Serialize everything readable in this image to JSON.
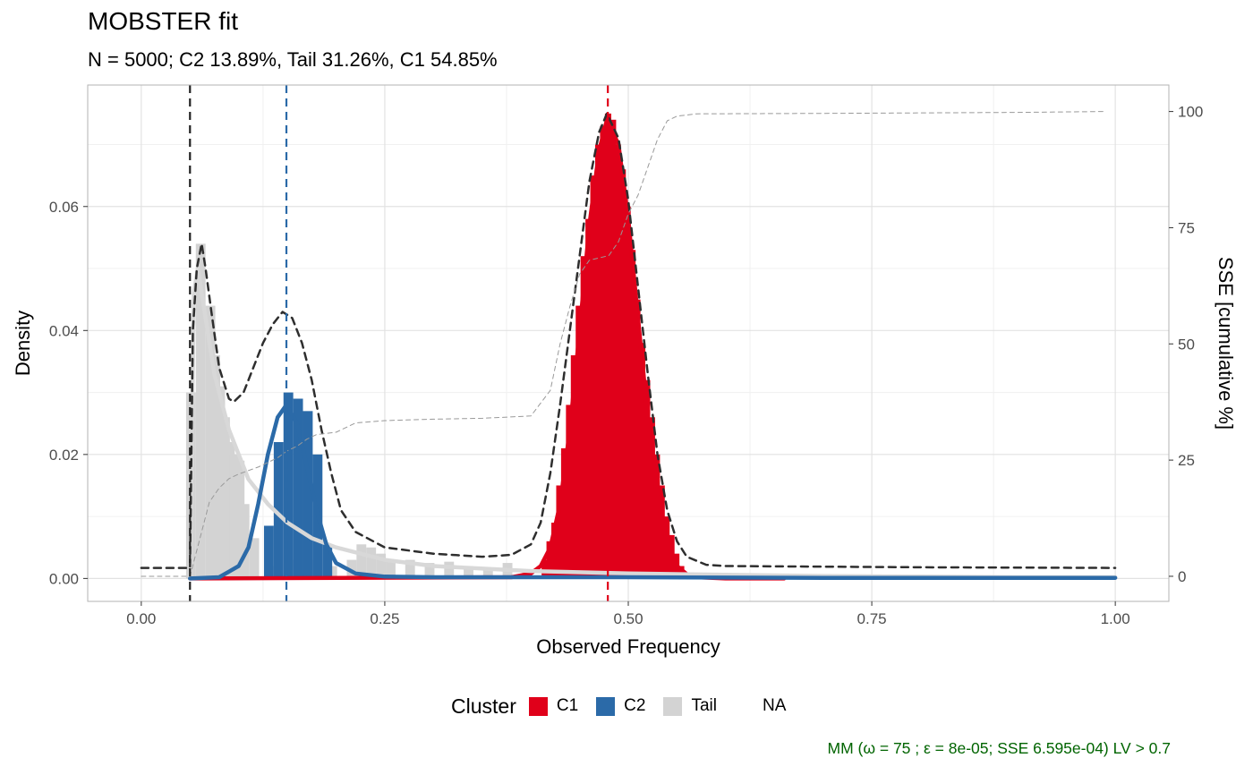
{
  "title": "MOBSTER fit",
  "subtitle": "N = 5000; C2 13.89%, Tail 31.26%, C1 54.85%",
  "caption": "MM (ω = 75 ; ε = 8e-05; SSE 6.595e-04) LV > 0.7",
  "legend": {
    "title": "Cluster",
    "items": [
      {
        "label": "C1",
        "color": "#e0001a"
      },
      {
        "label": "C2",
        "color": "#2b6aa8"
      },
      {
        "label": "Tail",
        "color": "#d3d3d3"
      },
      {
        "label": "NA",
        "color": null
      }
    ]
  },
  "chart_data": {
    "type": "bar",
    "xlabel": "Observed Frequency",
    "ylabel": "Density",
    "y2label": "SSE [cumulative %]",
    "xlim": [
      -0.055,
      1.055
    ],
    "ylim": [
      -0.0037,
      0.0796
    ],
    "y2lim": [
      -5.4,
      105.7
    ],
    "xticks": [
      {
        "v": 0,
        "label": "0.00"
      },
      {
        "v": 0.25,
        "label": "0.25"
      },
      {
        "v": 0.5,
        "label": "0.50"
      },
      {
        "v": 0.75,
        "label": "0.75"
      },
      {
        "v": 1.0,
        "label": "1.00"
      }
    ],
    "yticks": [
      {
        "v": 0,
        "label": "0.00"
      },
      {
        "v": 0.02,
        "label": "0.02"
      },
      {
        "v": 0.04,
        "label": "0.04"
      },
      {
        "v": 0.06,
        "label": "0.06"
      }
    ],
    "y2ticks": [
      {
        "v": 0,
        "label": "0"
      },
      {
        "v": 25,
        "label": "25"
      },
      {
        "v": 50,
        "label": "50"
      },
      {
        "v": 75,
        "label": "75"
      },
      {
        "v": 100,
        "label": "100"
      }
    ],
    "grid": true,
    "legend_position": "bottom",
    "colors": {
      "C1": "#e0001a",
      "C2": "#2b6aa8",
      "Tail": "#d3d3d3"
    },
    "vlines": [
      {
        "x": 0.05,
        "color": "#222222"
      },
      {
        "x": 0.149,
        "color": "#2b6aa8"
      },
      {
        "x": 0.479,
        "color": "#e0001a"
      }
    ],
    "histogram": [
      {
        "cluster": "Tail",
        "bins": [
          [
            0.046,
            0.03
          ],
          [
            0.056,
            0.054
          ],
          [
            0.066,
            0.044
          ],
          [
            0.071,
            0.036
          ],
          [
            0.076,
            0.031
          ],
          [
            0.081,
            0.026
          ],
          [
            0.086,
            0.022
          ],
          [
            0.091,
            0.02
          ],
          [
            0.096,
            0.019
          ],
          [
            0.101,
            0.012
          ],
          [
            0.111,
            0.0065
          ],
          [
            0.131,
            0.002
          ],
          [
            0.151,
            0.003
          ],
          [
            0.171,
            0.003
          ],
          [
            0.191,
            0.002
          ],
          [
            0.211,
            0.003
          ],
          [
            0.221,
            0.0055
          ],
          [
            0.231,
            0.005
          ],
          [
            0.241,
            0.004
          ],
          [
            0.251,
            0.003
          ],
          [
            0.271,
            0.003
          ],
          [
            0.291,
            0.0025
          ],
          [
            0.311,
            0.0027
          ],
          [
            0.331,
            0.002
          ],
          [
            0.351,
            0.0015
          ],
          [
            0.371,
            0.0025
          ],
          [
            0.391,
            0.001
          ],
          [
            0.411,
            0.0005
          ],
          [
            0.431,
            0.0005
          ],
          [
            0.451,
            0.0005
          ],
          [
            0.471,
            0.0005
          ],
          [
            0.491,
            0.0003
          ],
          [
            0.511,
            0.0005
          ],
          [
            0.531,
            0.0005
          ],
          [
            0.551,
            0.0004
          ],
          [
            0.571,
            0.0003
          ],
          [
            0.6,
            0.0004
          ],
          [
            0.65,
            0.0004
          ],
          [
            0.7,
            0.0004
          ],
          [
            0.75,
            0.0004
          ],
          [
            0.8,
            0.0004
          ],
          [
            0.85,
            0.0004
          ],
          [
            0.9,
            0.0004
          ],
          [
            0.95,
            0.0004
          ]
        ]
      },
      {
        "cluster": "C2",
        "bins": [
          [
            0.126,
            0.0085
          ],
          [
            0.136,
            0.022
          ],
          [
            0.146,
            0.03
          ],
          [
            0.156,
            0.029
          ],
          [
            0.166,
            0.027
          ],
          [
            0.176,
            0.02
          ],
          [
            0.186,
            0.0055
          ]
        ]
      },
      {
        "cluster": "C1",
        "bins": [
          [
            0.411,
            0.003
          ],
          [
            0.416,
            0.006
          ],
          [
            0.421,
            0.009
          ],
          [
            0.426,
            0.015
          ],
          [
            0.431,
            0.021
          ],
          [
            0.436,
            0.028
          ],
          [
            0.441,
            0.036
          ],
          [
            0.446,
            0.044
          ],
          [
            0.451,
            0.052
          ],
          [
            0.456,
            0.058
          ],
          [
            0.461,
            0.065
          ],
          [
            0.466,
            0.07
          ],
          [
            0.471,
            0.073
          ],
          [
            0.476,
            0.075
          ],
          [
            0.481,
            0.074
          ],
          [
            0.486,
            0.07
          ],
          [
            0.491,
            0.066
          ],
          [
            0.496,
            0.06
          ],
          [
            0.501,
            0.053
          ],
          [
            0.506,
            0.045
          ],
          [
            0.511,
            0.038
          ],
          [
            0.516,
            0.032
          ],
          [
            0.521,
            0.026
          ],
          [
            0.526,
            0.02
          ],
          [
            0.531,
            0.015
          ],
          [
            0.536,
            0.01
          ],
          [
            0.541,
            0.007
          ],
          [
            0.546,
            0.004
          ],
          [
            0.551,
            0.002
          ]
        ]
      }
    ],
    "curves": [
      {
        "name": "C1 density",
        "color": "#e0001a",
        "dash": "",
        "points": [
          [
            0.05,
            0
          ],
          [
            0.38,
            0.0002
          ],
          [
            0.4,
            0.0008
          ],
          [
            0.41,
            0.002
          ],
          [
            0.42,
            0.005
          ],
          [
            0.43,
            0.012
          ],
          [
            0.44,
            0.024
          ],
          [
            0.45,
            0.04
          ],
          [
            0.46,
            0.057
          ],
          [
            0.47,
            0.069
          ],
          [
            0.478,
            0.074
          ],
          [
            0.49,
            0.07
          ],
          [
            0.5,
            0.058
          ],
          [
            0.51,
            0.042
          ],
          [
            0.52,
            0.026
          ],
          [
            0.53,
            0.013
          ],
          [
            0.54,
            0.006
          ],
          [
            0.55,
            0.002
          ],
          [
            0.56,
            0.0007
          ],
          [
            0.57,
            0.0002
          ],
          [
            0.6,
            0
          ],
          [
            0.66,
            0
          ]
        ]
      },
      {
        "name": "Tail density",
        "color": "#d8d8d8",
        "dash": "",
        "points": [
          [
            0.05,
            0
          ],
          [
            0.054,
            0.046
          ],
          [
            0.058,
            0.05
          ],
          [
            0.065,
            0.043
          ],
          [
            0.075,
            0.033
          ],
          [
            0.09,
            0.024
          ],
          [
            0.11,
            0.016
          ],
          [
            0.13,
            0.012
          ],
          [
            0.15,
            0.009
          ],
          [
            0.175,
            0.0065
          ],
          [
            0.2,
            0.005
          ],
          [
            0.25,
            0.003
          ],
          [
            0.3,
            0.002
          ],
          [
            0.4,
            0.0012
          ],
          [
            0.5,
            0.0008
          ],
          [
            0.6,
            0.0006
          ],
          [
            0.7,
            0.0004
          ],
          [
            0.8,
            0.0003
          ],
          [
            0.9,
            0.0002
          ],
          [
            1.0,
            0.0002
          ]
        ]
      },
      {
        "name": "C2 density",
        "color": "#2b6aa8",
        "dash": "",
        "points": [
          [
            0.05,
            0
          ],
          [
            0.08,
            0.0002
          ],
          [
            0.1,
            0.002
          ],
          [
            0.11,
            0.005
          ],
          [
            0.12,
            0.012
          ],
          [
            0.13,
            0.02
          ],
          [
            0.14,
            0.026
          ],
          [
            0.149,
            0.028
          ],
          [
            0.16,
            0.025
          ],
          [
            0.17,
            0.018
          ],
          [
            0.18,
            0.011
          ],
          [
            0.19,
            0.0055
          ],
          [
            0.2,
            0.0025
          ],
          [
            0.22,
            0.0008
          ],
          [
            0.25,
            0.0003
          ],
          [
            0.3,
            0.0002
          ],
          [
            0.5,
            0.0002
          ],
          [
            0.7,
            0.0001
          ],
          [
            1.0,
            0.0001
          ]
        ]
      },
      {
        "name": "Mixture density",
        "color": "#2e2e2e",
        "dash": "8,6",
        "points": [
          [
            0.0,
            0.0017
          ],
          [
            0.05,
            0.0017
          ],
          [
            0.053,
            0.04
          ],
          [
            0.057,
            0.05
          ],
          [
            0.062,
            0.054
          ],
          [
            0.066,
            0.05
          ],
          [
            0.072,
            0.043
          ],
          [
            0.08,
            0.034
          ],
          [
            0.09,
            0.029
          ],
          [
            0.095,
            0.0285
          ],
          [
            0.105,
            0.03
          ],
          [
            0.115,
            0.034
          ],
          [
            0.125,
            0.038
          ],
          [
            0.135,
            0.041
          ],
          [
            0.145,
            0.043
          ],
          [
            0.155,
            0.042
          ],
          [
            0.165,
            0.038
          ],
          [
            0.175,
            0.032
          ],
          [
            0.185,
            0.024
          ],
          [
            0.195,
            0.017
          ],
          [
            0.205,
            0.011
          ],
          [
            0.22,
            0.0075
          ],
          [
            0.25,
            0.005
          ],
          [
            0.3,
            0.004
          ],
          [
            0.35,
            0.0035
          ],
          [
            0.38,
            0.0038
          ],
          [
            0.4,
            0.0055
          ],
          [
            0.41,
            0.009
          ],
          [
            0.42,
            0.017
          ],
          [
            0.43,
            0.028
          ],
          [
            0.44,
            0.04
          ],
          [
            0.45,
            0.052
          ],
          [
            0.46,
            0.064
          ],
          [
            0.47,
            0.072
          ],
          [
            0.478,
            0.075
          ],
          [
            0.49,
            0.071
          ],
          [
            0.5,
            0.061
          ],
          [
            0.51,
            0.047
          ],
          [
            0.52,
            0.033
          ],
          [
            0.53,
            0.02
          ],
          [
            0.54,
            0.011
          ],
          [
            0.55,
            0.006
          ],
          [
            0.56,
            0.0035
          ],
          [
            0.58,
            0.0022
          ],
          [
            0.6,
            0.002
          ],
          [
            0.8,
            0.0018
          ],
          [
            1.0,
            0.0017
          ]
        ]
      },
      {
        "name": "SSE cumulative",
        "color": "#999999",
        "dash": "5,4",
        "axis": "y2",
        "points": [
          [
            0.0,
            0
          ],
          [
            0.05,
            0
          ],
          [
            0.06,
            8
          ],
          [
            0.07,
            16
          ],
          [
            0.08,
            19
          ],
          [
            0.09,
            21
          ],
          [
            0.1,
            22
          ],
          [
            0.12,
            23.5
          ],
          [
            0.14,
            25.5
          ],
          [
            0.15,
            27
          ],
          [
            0.16,
            28
          ],
          [
            0.17,
            29.5
          ],
          [
            0.18,
            30.5
          ],
          [
            0.2,
            31
          ],
          [
            0.22,
            33
          ],
          [
            0.25,
            33.5
          ],
          [
            0.3,
            33.8
          ],
          [
            0.35,
            34
          ],
          [
            0.4,
            34.5
          ],
          [
            0.42,
            40
          ],
          [
            0.43,
            50
          ],
          [
            0.44,
            58
          ],
          [
            0.45,
            65
          ],
          [
            0.46,
            68
          ],
          [
            0.47,
            68.5
          ],
          [
            0.48,
            69
          ],
          [
            0.49,
            72
          ],
          [
            0.5,
            78
          ],
          [
            0.51,
            82
          ],
          [
            0.52,
            88
          ],
          [
            0.53,
            94
          ],
          [
            0.54,
            98
          ],
          [
            0.55,
            99
          ],
          [
            0.57,
            99.5
          ],
          [
            0.7,
            99.6
          ],
          [
            0.9,
            99.8
          ],
          [
            0.99,
            100
          ]
        ]
      }
    ]
  }
}
